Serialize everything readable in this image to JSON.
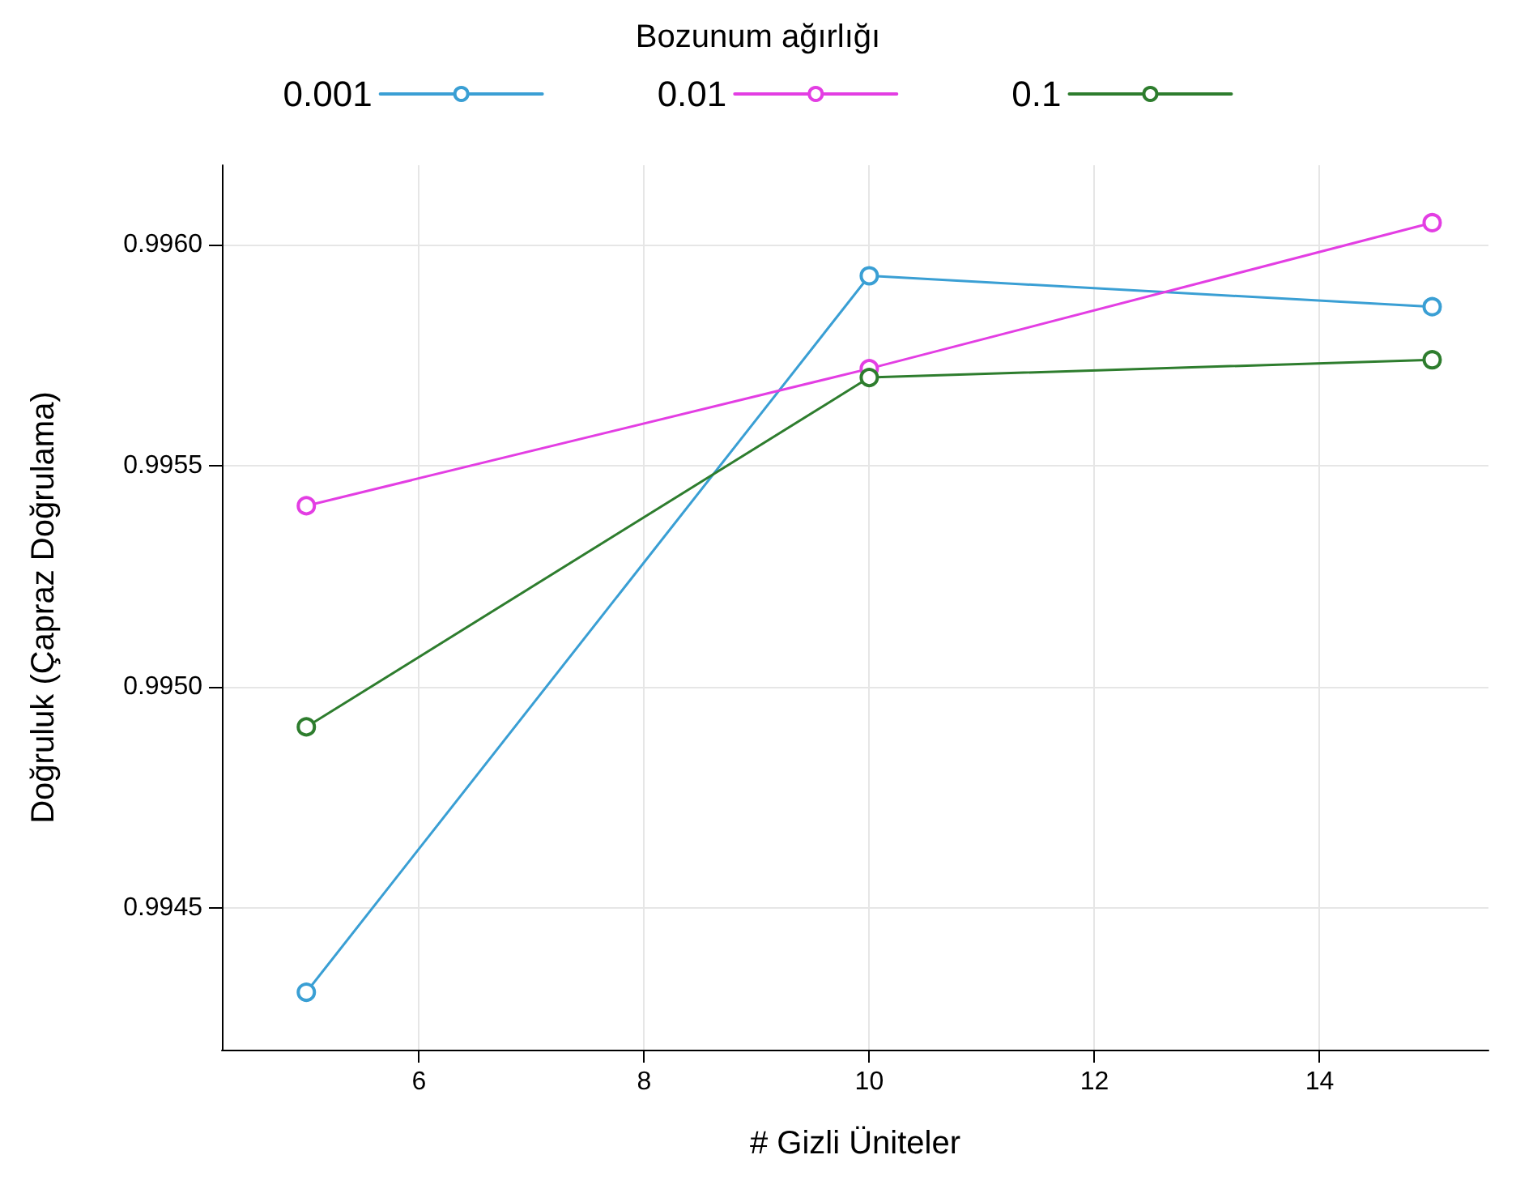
{
  "chart_data": {
    "type": "line",
    "xlabel": "# Gizli Üniteler",
    "ylabel": "Doğruluk (Çapraz Doğrulama)",
    "legend_title": "Bozunum ağırlığı",
    "x": [
      5,
      10,
      15
    ],
    "series": [
      {
        "name": "0.001",
        "color": "#3a9fd4",
        "values": [
          0.99431,
          0.99593,
          0.99586
        ]
      },
      {
        "name": "0.01",
        "color": "#e33ee3",
        "values": [
          0.99541,
          0.99572,
          0.99605
        ]
      },
      {
        "name": "0.1",
        "color": "#2e7d2e",
        "values": [
          0.99491,
          0.9957,
          0.99574
        ]
      }
    ],
    "xlim": [
      4.25,
      15.5
    ],
    "xticks": [
      6,
      8,
      10,
      12,
      14
    ],
    "ylim": [
      0.99418,
      0.99618
    ],
    "yticks": [
      {
        "value": 0.9945,
        "label": "0.9945"
      },
      {
        "value": 0.995,
        "label": "0.9950"
      },
      {
        "value": 0.9955,
        "label": "0.9955"
      },
      {
        "value": 0.996,
        "label": "0.9960"
      }
    ],
    "grid": true,
    "legend": "top",
    "marker": "circle",
    "line_style": "solid"
  }
}
